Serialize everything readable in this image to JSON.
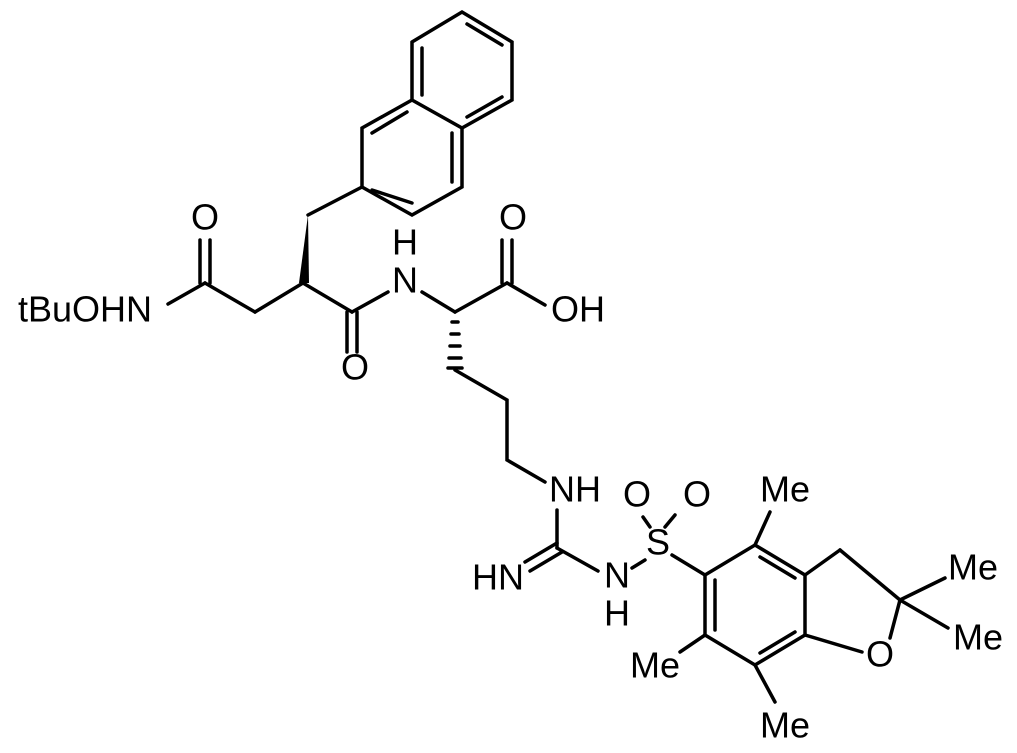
{
  "labels": [
    "tBuOHN",
    "O",
    "O",
    "H",
    "N",
    "O",
    "OH",
    "NH",
    "HN",
    "N",
    "H",
    "S",
    "O",
    "O",
    "Me",
    "Me",
    "Me",
    "O",
    "Me",
    "Me"
  ]
}
